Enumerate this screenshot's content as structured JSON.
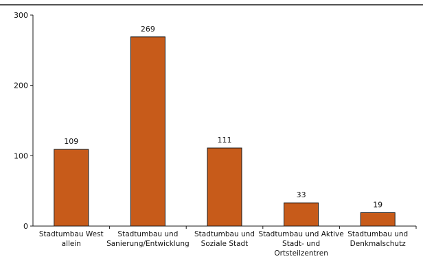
{
  "chart_data": {
    "type": "bar",
    "categories": [
      [
        "Stadtumbau West",
        "allein"
      ],
      [
        "Stadtumbau und",
        "Sanierung/Entwicklung"
      ],
      [
        "Stadtumbau und",
        "Soziale Stadt"
      ],
      [
        "Stadtumbau und Aktive",
        "Stadt- und",
        "Ortsteilzentren"
      ],
      [
        "Stadtumbau und",
        "Denkmalschutz"
      ]
    ],
    "values": [
      109,
      269,
      111,
      33,
      19
    ],
    "value_labels": [
      "109",
      "269",
      "111",
      "33",
      "19"
    ],
    "ylim": [
      0,
      300
    ],
    "yticks": [
      0,
      100,
      200,
      300
    ],
    "ytick_labels": [
      "0",
      "100",
      "200",
      "300"
    ],
    "grid": false,
    "legend": "none",
    "colors": {
      "bar_fill": "#C75B1A",
      "bar_stroke": "#1a1a1a",
      "axis": "#1a1a1a"
    }
  }
}
